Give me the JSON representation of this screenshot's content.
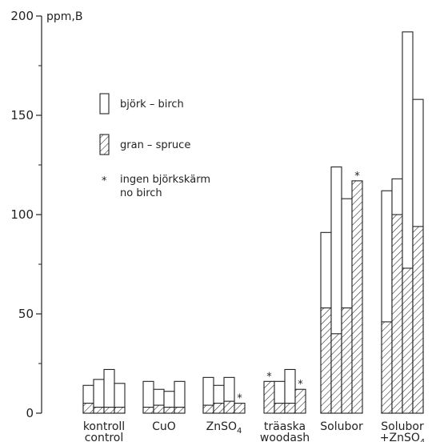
{
  "chart_data": {
    "type": "bar",
    "ylabel": "ppm,B",
    "ylim": [
      0,
      200
    ],
    "yticks": [
      0,
      50,
      100,
      150,
      200
    ],
    "grid": false,
    "legend": {
      "placement": "upper-left inside plot",
      "birch_label": "björk – birch",
      "spruce_label": "gran – spruce",
      "star_label_1": "ingen björkskärm",
      "star_label_2": "no birch",
      "star_symbol": "*"
    },
    "categories": [
      {
        "line1": "kontroll",
        "line2": "control"
      },
      {
        "line1": "CuO",
        "line2": ""
      },
      {
        "line1": "ZnSO",
        "sub": "4",
        "line2": ""
      },
      {
        "line1": "träaska",
        "line2": "woodash"
      },
      {
        "line1": "Solubor",
        "line2": ""
      },
      {
        "line1": "Solubor",
        "line2": "+ZnSO",
        "sub2": "4"
      }
    ],
    "series": [
      {
        "name": "björk – birch",
        "values": [
          [
            14,
            17,
            22,
            15
          ],
          [
            16,
            12,
            11,
            16
          ],
          [
            18,
            14,
            18,
            null
          ],
          [
            null,
            16,
            22,
            null
          ],
          [
            91,
            124,
            108,
            null
          ],
          [
            112,
            118,
            192,
            158
          ]
        ]
      },
      {
        "name": "gran – spruce",
        "values": [
          [
            5,
            3,
            3,
            3
          ],
          [
            3,
            4,
            3,
            3
          ],
          [
            4,
            5,
            6,
            5
          ],
          [
            16,
            5,
            5,
            12
          ],
          [
            53,
            40,
            53,
            117
          ],
          [
            46,
            100,
            73,
            94
          ]
        ]
      }
    ],
    "no_birch_star": [
      [
        false,
        false,
        false,
        false
      ],
      [
        false,
        false,
        false,
        false
      ],
      [
        false,
        false,
        false,
        true
      ],
      [
        true,
        false,
        false,
        true
      ],
      [
        false,
        false,
        false,
        true
      ],
      [
        false,
        false,
        false,
        false
      ]
    ]
  }
}
